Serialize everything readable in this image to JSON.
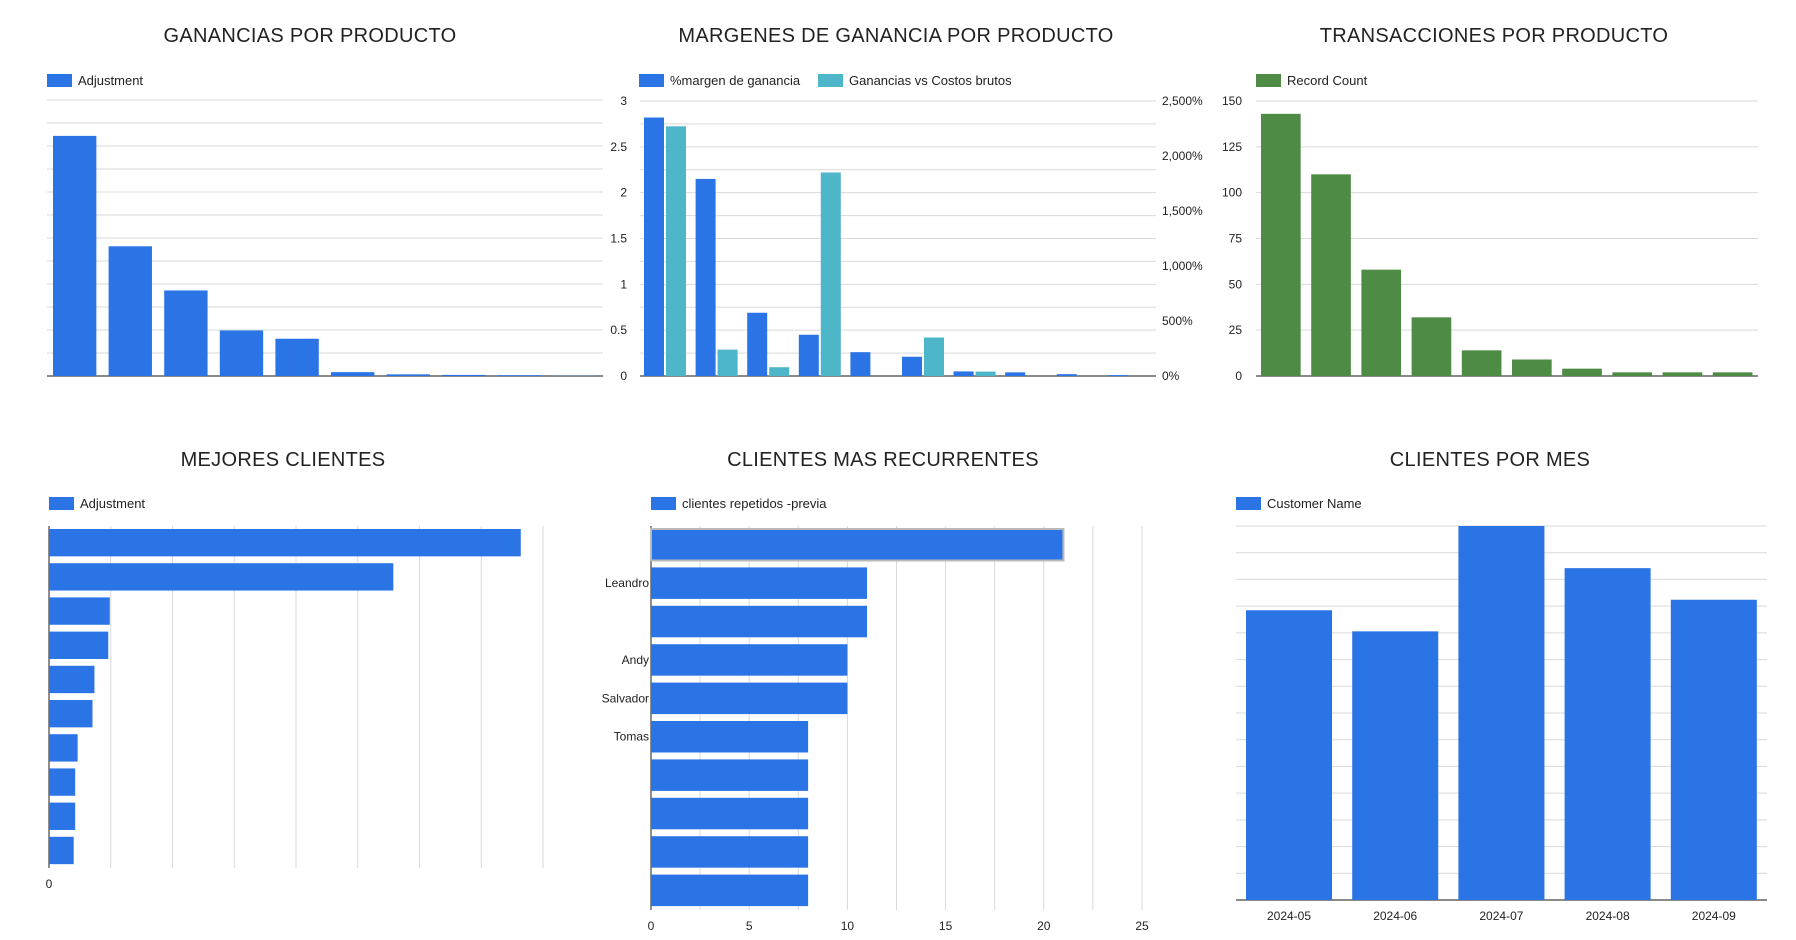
{
  "colors": {
    "blue": "#2b74e6",
    "teal": "#4db6c9",
    "green": "#4e8b44"
  },
  "chart_data": [
    {
      "id": "ganancias",
      "type": "bar",
      "title": "GANANCIAS POR PRODUCTO",
      "series": [
        {
          "name": "Adjustment",
          "values": [
            0.87,
            0.47,
            0.31,
            0.165,
            0.135,
            0.014,
            0.006,
            0.004,
            0.003,
            0.001
          ]
        }
      ],
      "ylim": [
        0,
        1
      ],
      "grid": true,
      "legend": "top-left"
    },
    {
      "id": "margenes",
      "type": "bar",
      "title": "MARGENES DE GANANCIA POR PRODUCTO",
      "series": [
        {
          "name": "%margen de ganancia",
          "axis": "left",
          "values": [
            2.82,
            2.15,
            0.69,
            0.45,
            0.26,
            0.21,
            0.05,
            0.04,
            0.02,
            0.01
          ]
        },
        {
          "name": "Ganancias vs Costos brutos",
          "axis": "right",
          "values": [
            2270,
            240,
            80,
            1850,
            0,
            350,
            40,
            0,
            0,
            0
          ]
        }
      ],
      "ylim_left": [
        0,
        3
      ],
      "yticks_left": [
        "0",
        "0.5",
        "1",
        "1.5",
        "2",
        "2.5",
        "3"
      ],
      "ylim_right": [
        0,
        2500
      ],
      "yticks_right": [
        "0%",
        "500%",
        "1,000%",
        "1,500%",
        "2,000%",
        "2,500%"
      ],
      "grid": true,
      "legend": "top-left"
    },
    {
      "id": "transacciones",
      "type": "bar",
      "title": "TRANSACCIONES POR PRODUCTO",
      "series": [
        {
          "name": "Record Count",
          "values": [
            143,
            110,
            58,
            32,
            14,
            9,
            4,
            2,
            2,
            2
          ]
        }
      ],
      "ylim": [
        0,
        150
      ],
      "yticks": [
        "0",
        "25",
        "50",
        "75",
        "100",
        "125",
        "150"
      ],
      "grid": true,
      "legend": "top-left"
    },
    {
      "id": "mejores",
      "type": "bar",
      "orientation": "horizontal",
      "title": "MEJORES CLIENTES",
      "series": [
        {
          "name": "Adjustment",
          "values": [
            0.955,
            0.697,
            0.123,
            0.12,
            0.092,
            0.088,
            0.058,
            0.053,
            0.053,
            0.05
          ]
        }
      ],
      "xlim": [
        0,
        1
      ],
      "xticks": [
        "0"
      ],
      "grid": true,
      "legend": "top-left"
    },
    {
      "id": "recurrentes",
      "type": "bar",
      "orientation": "horizontal",
      "title": "CLIENTES MAS RECURRENTES",
      "categories": [
        "",
        "Leandro",
        "",
        "Andy",
        "Salvador",
        "Tomas",
        "",
        "",
        "",
        ""
      ],
      "series": [
        {
          "name": "clientes repetidos -previa",
          "values": [
            21,
            11,
            11,
            10,
            10,
            8,
            8,
            8,
            8,
            8
          ]
        }
      ],
      "xlim": [
        0,
        25
      ],
      "xticks": [
        "0",
        "5",
        "10",
        "15",
        "20",
        "25"
      ],
      "grid": true,
      "legend": "top-left"
    },
    {
      "id": "mes",
      "type": "bar",
      "title": "CLIENTES POR MES",
      "categories": [
        "2024-05",
        "2024-06",
        "2024-07",
        "2024-08",
        "2024-09"
      ],
      "series": [
        {
          "name": "Customer Name",
          "values": [
            55,
            51,
            71,
            63,
            57
          ]
        }
      ],
      "ylim": [
        0,
        71
      ],
      "grid": true,
      "legend": "top-left"
    }
  ]
}
